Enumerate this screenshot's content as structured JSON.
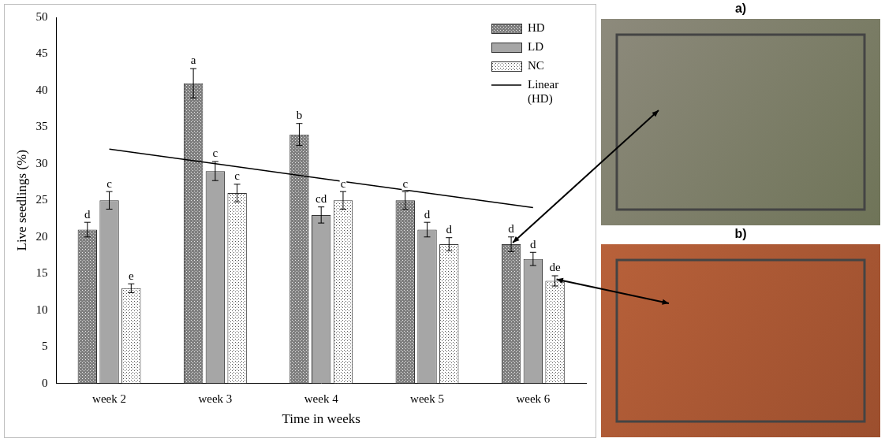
{
  "chart_data": {
    "type": "bar",
    "x_label": "Time in weeks",
    "y_label": "Live seedlings (%)",
    "categories": [
      "week 2",
      "week 3",
      "week 4",
      "week 5",
      "week 6"
    ],
    "series": [
      {
        "name": "HD",
        "color": "#7f7f7f",
        "values": [
          21,
          41,
          34,
          25,
          19
        ],
        "errors": [
          1,
          2,
          1.5,
          1.2,
          1
        ],
        "letters": [
          "d",
          "a",
          "b",
          "c",
          "d"
        ]
      },
      {
        "name": "LD",
        "color": "#a6a6a6",
        "values": [
          25,
          29,
          23,
          21,
          17
        ],
        "errors": [
          1.2,
          1.3,
          1.1,
          1,
          0.9
        ],
        "letters": [
          "c",
          "c",
          "cd",
          "d",
          "d"
        ]
      },
      {
        "name": "NC",
        "color": "#ffffff",
        "values": [
          13,
          26,
          25,
          19,
          14
        ],
        "errors": [
          0.6,
          1.2,
          1.2,
          0.9,
          0.7
        ],
        "letters": [
          "e",
          "c",
          "c",
          "d",
          "de"
        ]
      },
      {
        "name": "Linear (HD)",
        "type": "line",
        "color": "#000000",
        "values": [
          32,
          30,
          28,
          26,
          24
        ]
      }
    ],
    "ylim": [
      0,
      50
    ],
    "yticks": [
      0,
      5,
      10,
      15,
      20,
      25,
      30,
      35,
      40,
      45,
      50
    ],
    "grid": false,
    "legend": "top-right"
  },
  "images": [
    {
      "label": "a)"
    },
    {
      "label": "b)"
    }
  ]
}
